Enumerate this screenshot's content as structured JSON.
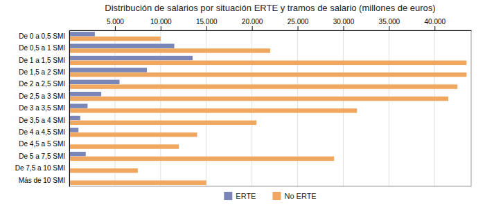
{
  "chart_data": {
    "type": "bar",
    "orientation": "horizontal",
    "title": "Distribución de salarios por situación ERTE y tramos de salario (millones de euros)",
    "categories": [
      "De 0 a 0,5 SMI",
      "De 0,5 a 1 SMI",
      "De 1 a 1,5 SMI",
      "De 1,5 a 2 SMI",
      "De 2 a 2,5 SMI",
      "De 2,5 a 3 SMI",
      "De 3 a 3,5 SMI",
      "De 3,5 a 4 SMI",
      "De 4 a 4,5 SMI",
      "De 4,5 a 5 SMI",
      "De 5 a 7,5 SMI",
      "De 7,5 a 10 SMI",
      "Más de 10 SMI"
    ],
    "series": [
      {
        "name": "ERTE",
        "color": "#7B86B8",
        "values": [
          2800,
          11500,
          13500,
          8500,
          5500,
          3500,
          2000,
          1200,
          1000,
          0,
          1800,
          0,
          0
        ]
      },
      {
        "name": "No ERTE",
        "color": "#F0A860",
        "values": [
          10000,
          22000,
          43500,
          43500,
          42500,
          41500,
          31500,
          20500,
          14000,
          12000,
          29000,
          7500,
          15000
        ]
      }
    ],
    "xlim": [
      0,
      44000
    ],
    "xticks": [
      {
        "value": 5000,
        "label": "5.000"
      },
      {
        "value": 10000,
        "label": "10.000"
      },
      {
        "value": 15000,
        "label": "15.000"
      },
      {
        "value": 20000,
        "label": "20.000"
      },
      {
        "value": 25000,
        "label": "25.000"
      },
      {
        "value": 30000,
        "label": "30.000"
      },
      {
        "value": 35000,
        "label": "35.000"
      },
      {
        "value": 40000,
        "label": "40.000"
      }
    ],
    "grid": true,
    "legend": "bottom"
  }
}
